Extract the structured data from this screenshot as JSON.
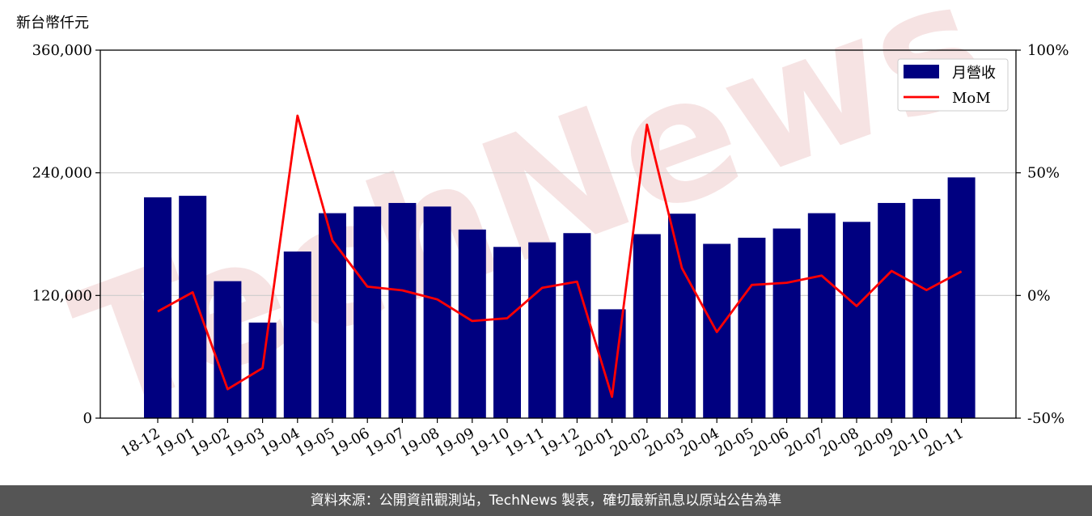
{
  "footer": {
    "source": "資料來源：公開資訊觀測站，TechNews 製表，確切最新訊息以原站公告為準"
  },
  "watermark": "TechNews",
  "chart_data": {
    "type": "bar",
    "y_unit_label": "新台幣仟元",
    "categories": [
      "18-12",
      "19-01",
      "19-02",
      "19-03",
      "19-04",
      "19-05",
      "19-06",
      "19-07",
      "19-08",
      "19-09",
      "19-10",
      "19-11",
      "19-12",
      "20-01",
      "20-02",
      "20-03",
      "20-04",
      "20-05",
      "20-06",
      "20-07",
      "20-08",
      "20-09",
      "20-10",
      "20-11"
    ],
    "series": [
      {
        "name": "月營收",
        "type": "bar",
        "axis": "left",
        "color": "#000080",
        "values": [
          216000,
          217500,
          134000,
          93500,
          163000,
          200500,
          207000,
          210500,
          207000,
          184500,
          167500,
          172000,
          181000,
          106500,
          180000,
          200000,
          170500,
          176500,
          185500,
          200500,
          192000,
          210500,
          214500,
          235500
        ]
      },
      {
        "name": "MoM",
        "type": "line",
        "axis": "right",
        "color": "#ff0000",
        "values": [
          -6.5,
          1.3,
          -38.2,
          -29.6,
          73.3,
          22.4,
          3.6,
          2.1,
          -1.6,
          -10.4,
          -9.3,
          3.1,
          5.6,
          -41.3,
          69.6,
          11.2,
          -14.9,
          4.3,
          5.2,
          8.1,
          -4.3,
          10.0,
          2.2,
          9.8
        ]
      }
    ],
    "y_left": {
      "min": 0,
      "max": 360000,
      "ticks": [
        0,
        120000,
        240000,
        360000
      ],
      "tick_labels": [
        "0",
        "120,000",
        "240,000",
        "360,000"
      ]
    },
    "y_right": {
      "min": -50,
      "max": 100,
      "ticks": [
        -50,
        0,
        50,
        100
      ],
      "tick_labels": [
        "-50%",
        "0%",
        "50%",
        "100%"
      ]
    },
    "grid": "horizontal",
    "legend_position": "top-right"
  }
}
